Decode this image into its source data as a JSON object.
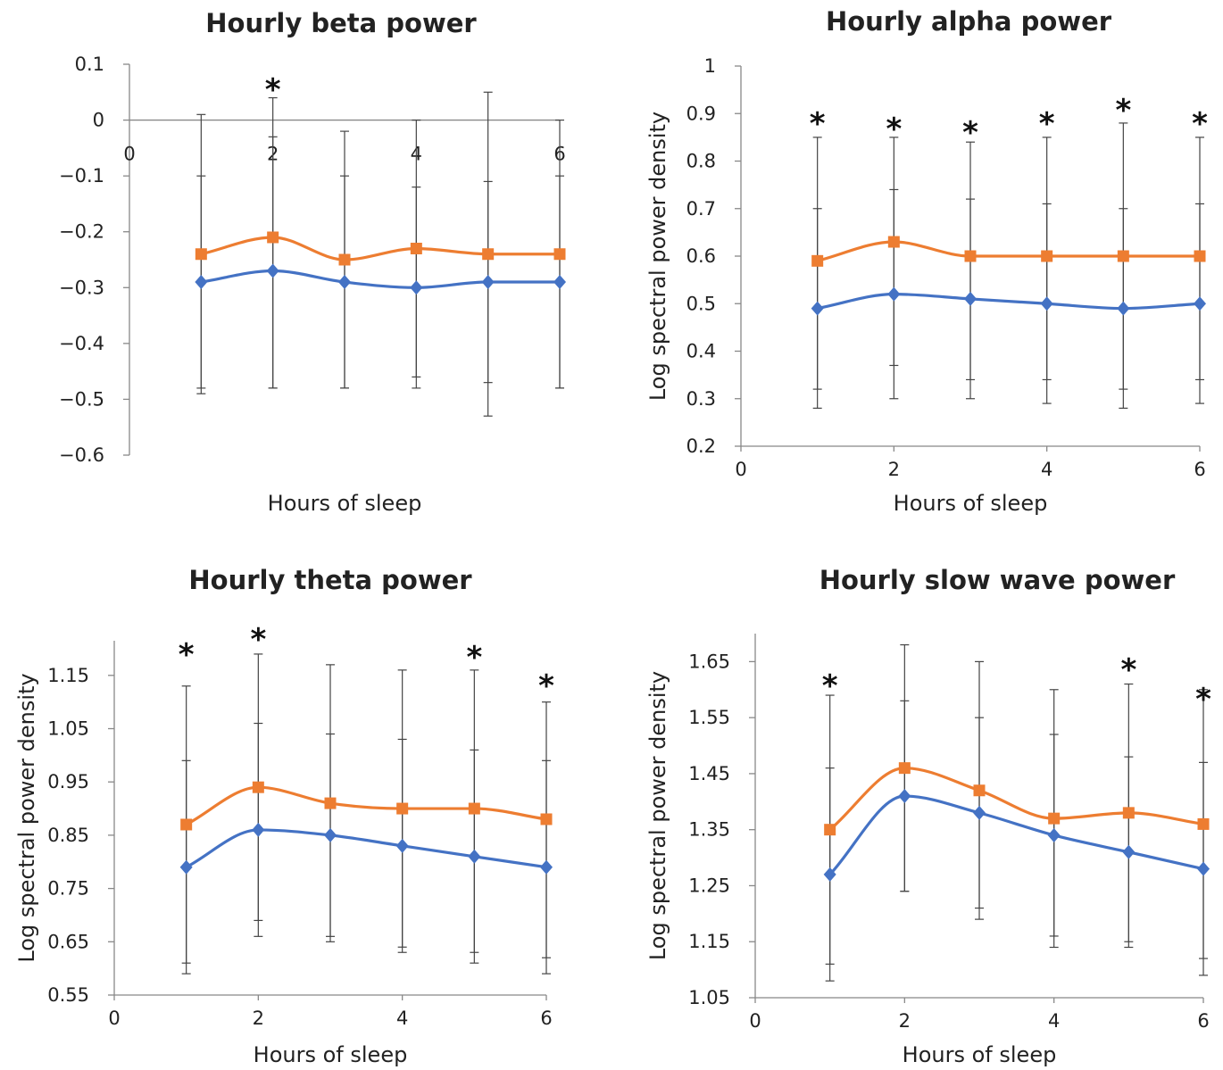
{
  "colors": {
    "series_a": "#4472C4",
    "series_b": "#ED7D31",
    "axis": "#888888",
    "error_bar": "#444444"
  },
  "chart_data": [
    {
      "type": "line",
      "title": "Hourly beta power",
      "xlabel": "Hours of sleep",
      "ylabel": "",
      "xlim": [
        0,
        6
      ],
      "ylim": [
        -0.6,
        0.1
      ],
      "x_ticks": [
        0,
        2,
        4,
        6
      ],
      "y_ticks": [
        0.1,
        0,
        -0.1,
        -0.2,
        -0.3,
        -0.4,
        -0.5,
        -0.6
      ],
      "y_tick_labels": [
        "0.1",
        "0",
        "−0.1",
        "−0.2",
        "−0.3",
        "−0.4",
        "−0.5",
        "−0.6"
      ],
      "x_axis_at": 0,
      "grid": false,
      "x": [
        1,
        2,
        3,
        4,
        5,
        6
      ],
      "series": [
        {
          "color_key": "series_a",
          "marker": "diamond",
          "values": [
            -0.29,
            -0.27,
            -0.29,
            -0.3,
            -0.29,
            -0.29
          ],
          "err_low": [
            -0.49,
            -0.48,
            -0.48,
            -0.48,
            -0.53,
            -0.48
          ],
          "err_high": [
            -0.1,
            -0.03,
            -0.1,
            -0.12,
            -0.11,
            -0.1
          ]
        },
        {
          "color_key": "series_b",
          "marker": "square",
          "values": [
            -0.24,
            -0.21,
            -0.25,
            -0.23,
            -0.24,
            -0.24
          ],
          "err_low": [
            -0.48,
            -0.48,
            -0.48,
            -0.46,
            -0.47,
            -0.48
          ],
          "err_high": [
            0.01,
            0.04,
            -0.02,
            0.0,
            0.05,
            0.0
          ]
        }
      ],
      "annotations": [
        {
          "x": 2,
          "text": "*"
        }
      ]
    },
    {
      "type": "line",
      "title": "Hourly alpha power",
      "xlabel": "Hours of sleep",
      "ylabel": "Log spectral power density",
      "xlim": [
        0,
        6
      ],
      "ylim": [
        0.2,
        1.0
      ],
      "x_ticks": [
        0,
        2,
        4,
        6
      ],
      "y_ticks": [
        0.2,
        0.3,
        0.4,
        0.5,
        0.6,
        0.7,
        0.8,
        0.9,
        1.0
      ],
      "y_tick_labels": [
        "0.2",
        "0.3",
        "0.4",
        "0.5",
        "0.6",
        "0.7",
        "0.8",
        "0.9",
        "1"
      ],
      "grid": false,
      "x": [
        1,
        2,
        3,
        4,
        5,
        6
      ],
      "series": [
        {
          "color_key": "series_a",
          "marker": "diamond",
          "values": [
            0.49,
            0.52,
            0.51,
            0.5,
            0.49,
            0.5
          ],
          "err_low": [
            0.28,
            0.3,
            0.3,
            0.29,
            0.28,
            0.29
          ],
          "err_high": [
            0.7,
            0.74,
            0.72,
            0.71,
            0.7,
            0.71
          ]
        },
        {
          "color_key": "series_b",
          "marker": "square",
          "values": [
            0.59,
            0.63,
            0.6,
            0.6,
            0.6,
            0.6
          ],
          "err_low": [
            0.32,
            0.37,
            0.34,
            0.34,
            0.32,
            0.34
          ],
          "err_high": [
            0.85,
            0.85,
            0.84,
            0.85,
            0.88,
            0.85
          ]
        }
      ],
      "annotations": [
        {
          "x": 1,
          "text": "*"
        },
        {
          "x": 2,
          "text": "*"
        },
        {
          "x": 3,
          "text": "*"
        },
        {
          "x": 4,
          "text": "*"
        },
        {
          "x": 5,
          "text": "*"
        },
        {
          "x": 6,
          "text": "*"
        }
      ]
    },
    {
      "type": "line",
      "title": "Hourly theta power",
      "xlabel": "Hours of sleep",
      "ylabel": "Log spectral power density",
      "xlim": [
        0,
        6
      ],
      "ylim": [
        0.55,
        1.215
      ],
      "x_ticks": [
        0,
        2,
        4,
        6
      ],
      "y_ticks": [
        0.55,
        0.65,
        0.75,
        0.85,
        0.95,
        1.05,
        1.15
      ],
      "y_tick_labels": [
        "0.55",
        "0.65",
        "0.75",
        "0.85",
        "0.95",
        "1.05",
        "1.15"
      ],
      "grid": false,
      "x": [
        1,
        2,
        3,
        4,
        5,
        6
      ],
      "series": [
        {
          "color_key": "series_a",
          "marker": "diamond",
          "values": [
            0.79,
            0.86,
            0.85,
            0.83,
            0.81,
            0.79
          ],
          "err_low": [
            0.59,
            0.66,
            0.65,
            0.63,
            0.61,
            0.59
          ],
          "err_high": [
            0.99,
            1.06,
            1.04,
            1.03,
            1.01,
            0.99
          ]
        },
        {
          "color_key": "series_b",
          "marker": "square",
          "values": [
            0.87,
            0.94,
            0.91,
            0.9,
            0.9,
            0.88
          ],
          "err_low": [
            0.61,
            0.69,
            0.66,
            0.64,
            0.63,
            0.62
          ],
          "err_high": [
            1.13,
            1.19,
            1.17,
            1.16,
            1.16,
            1.1
          ]
        }
      ],
      "annotations": [
        {
          "x": 1,
          "text": "*"
        },
        {
          "x": 2,
          "text": "*"
        },
        {
          "x": 5,
          "text": "*"
        },
        {
          "x": 6,
          "text": "*"
        }
      ]
    },
    {
      "type": "line",
      "title": "Hourly slow wave power",
      "xlabel": "Hours of sleep",
      "ylabel": "Log spectral power density",
      "xlim": [
        0,
        6
      ],
      "ylim": [
        1.05,
        1.7
      ],
      "x_ticks": [
        0,
        2,
        4,
        6
      ],
      "y_ticks": [
        1.05,
        1.15,
        1.25,
        1.35,
        1.45,
        1.55,
        1.65
      ],
      "y_tick_labels": [
        "1.05",
        "1.15",
        "1.25",
        "1.35",
        "1.45",
        "1.55",
        "1.65"
      ],
      "grid": false,
      "x": [
        1,
        2,
        3,
        4,
        5,
        6
      ],
      "series": [
        {
          "color_key": "series_a",
          "marker": "diamond",
          "values": [
            1.27,
            1.41,
            1.38,
            1.34,
            1.31,
            1.28
          ],
          "err_low": [
            1.08,
            1.24,
            1.19,
            1.14,
            1.14,
            1.09
          ],
          "err_high": [
            1.46,
            1.58,
            1.55,
            1.52,
            1.48,
            1.47
          ]
        },
        {
          "color_key": "series_b",
          "marker": "square",
          "values": [
            1.35,
            1.46,
            1.42,
            1.37,
            1.38,
            1.36
          ],
          "err_low": [
            1.11,
            1.24,
            1.21,
            1.16,
            1.15,
            1.12
          ],
          "err_high": [
            1.59,
            1.68,
            1.65,
            1.6,
            1.61,
            1.6
          ]
        }
      ],
      "annotations": [
        {
          "x": 1,
          "text": "*"
        },
        {
          "x": 5,
          "text": "*"
        },
        {
          "x": 6,
          "text": "*"
        }
      ]
    }
  ]
}
